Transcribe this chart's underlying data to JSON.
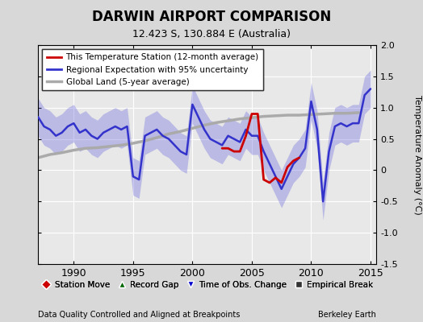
{
  "title": "DARWIN AIRPORT COMPARISON",
  "subtitle": "12.423 S, 130.884 E (Australia)",
  "ylabel": "Temperature Anomaly (°C)",
  "xlabel_left": "Data Quality Controlled and Aligned at Breakpoints",
  "xlabel_right": "Berkeley Earth",
  "ylim": [
    -1.5,
    2.0
  ],
  "xlim": [
    1987.0,
    2015.5
  ],
  "xticks": [
    1990,
    1995,
    2000,
    2005,
    2010,
    2015
  ],
  "yticks": [
    -1.5,
    -1.0,
    -0.5,
    0,
    0.5,
    1.0,
    1.5,
    2.0
  ],
  "bg_color": "#d8d8d8",
  "plot_bg_color": "#e8e8e8",
  "grid_color": "#ffffff",
  "legend1_entries": [
    {
      "label": "This Temperature Station (12-month average)",
      "color": "#cc0000",
      "lw": 2.0
    },
    {
      "label": "Regional Expectation with 95% uncertainty",
      "color": "#4444cc",
      "lw": 2.0
    },
    {
      "label": "Global Land (5-year average)",
      "color": "#aaaaaa",
      "lw": 2.5
    }
  ],
  "legend2_entries": [
    {
      "label": "Station Move",
      "marker": "D",
      "color": "#cc0000"
    },
    {
      "label": "Record Gap",
      "marker": "^",
      "color": "#006600"
    },
    {
      "label": "Time of Obs. Change",
      "marker": "v",
      "color": "#0000cc"
    },
    {
      "label": "Empirical Break",
      "marker": "s",
      "color": "#333333"
    }
  ],
  "regional_x": [
    1987.0,
    1987.5,
    1988.0,
    1988.5,
    1989.0,
    1989.5,
    1990.0,
    1990.5,
    1991.0,
    1991.5,
    1992.0,
    1992.5,
    1993.0,
    1993.5,
    1994.0,
    1994.5,
    1995.0,
    1995.5,
    1996.0,
    1996.5,
    1997.0,
    1997.5,
    1998.0,
    1998.5,
    1999.0,
    1999.5,
    2000.0,
    2000.5,
    2001.0,
    2001.5,
    2002.0,
    2002.5,
    2003.0,
    2003.5,
    2004.0,
    2004.5,
    2005.0,
    2005.5,
    2006.0,
    2006.5,
    2007.0,
    2007.5,
    2008.0,
    2008.5,
    2009.0,
    2009.5,
    2010.0,
    2010.5,
    2011.0,
    2011.5,
    2012.0,
    2012.5,
    2013.0,
    2013.5,
    2014.0,
    2014.5,
    2015.0
  ],
  "regional_y": [
    0.85,
    0.7,
    0.65,
    0.55,
    0.6,
    0.7,
    0.75,
    0.6,
    0.65,
    0.55,
    0.5,
    0.6,
    0.65,
    0.7,
    0.65,
    0.7,
    -0.1,
    -0.15,
    0.55,
    0.6,
    0.65,
    0.55,
    0.5,
    0.4,
    0.3,
    0.25,
    1.05,
    0.85,
    0.65,
    0.5,
    0.45,
    0.4,
    0.55,
    0.5,
    0.45,
    0.65,
    0.55,
    0.55,
    0.3,
    0.1,
    -0.1,
    -0.3,
    -0.1,
    0.1,
    0.2,
    0.35,
    1.1,
    0.65,
    -0.5,
    0.3,
    0.7,
    0.75,
    0.7,
    0.75,
    0.75,
    1.2,
    1.3
  ],
  "regional_upper": [
    1.15,
    1.0,
    0.95,
    0.85,
    0.9,
    1.0,
    1.05,
    0.9,
    0.95,
    0.85,
    0.8,
    0.9,
    0.95,
    1.0,
    0.95,
    1.0,
    0.2,
    0.15,
    0.85,
    0.9,
    0.95,
    0.85,
    0.8,
    0.7,
    0.6,
    0.55,
    1.35,
    1.15,
    0.95,
    0.8,
    0.75,
    0.7,
    0.85,
    0.8,
    0.75,
    0.95,
    0.85,
    0.85,
    0.6,
    0.4,
    0.2,
    0.0,
    0.2,
    0.4,
    0.5,
    0.65,
    1.4,
    0.95,
    -0.2,
    0.6,
    1.0,
    1.05,
    1.0,
    1.05,
    1.05,
    1.5,
    1.6
  ],
  "regional_lower": [
    0.55,
    0.4,
    0.35,
    0.25,
    0.3,
    0.4,
    0.45,
    0.3,
    0.35,
    0.25,
    0.2,
    0.3,
    0.35,
    0.4,
    0.35,
    0.4,
    -0.4,
    -0.45,
    0.25,
    0.3,
    0.35,
    0.25,
    0.2,
    0.1,
    0.0,
    -0.05,
    0.75,
    0.55,
    0.35,
    0.2,
    0.15,
    0.1,
    0.25,
    0.2,
    0.15,
    0.35,
    0.25,
    0.25,
    0.0,
    -0.2,
    -0.4,
    -0.6,
    -0.4,
    -0.2,
    -0.1,
    0.05,
    0.8,
    0.35,
    -0.8,
    0.0,
    0.4,
    0.45,
    0.4,
    0.45,
    0.45,
    0.9,
    1.0
  ],
  "station_x": [
    2002.5,
    2003.0,
    2003.5,
    2004.0,
    2004.5,
    2005.0,
    2005.5,
    2006.0,
    2006.5,
    2007.0,
    2007.5,
    2008.0,
    2008.5,
    2009.0
  ],
  "station_y": [
    0.35,
    0.35,
    0.3,
    0.3,
    0.55,
    0.9,
    0.9,
    -0.15,
    -0.2,
    -0.12,
    -0.2,
    0.05,
    0.15,
    0.2
  ],
  "global_x": [
    1987.0,
    1988.0,
    1989.0,
    1990.0,
    1991.0,
    1992.0,
    1993.0,
    1994.0,
    1995.0,
    1996.0,
    1997.0,
    1998.0,
    1999.0,
    2000.0,
    2001.0,
    2002.0,
    2003.0,
    2004.0,
    2005.0,
    2006.0,
    2007.0,
    2008.0,
    2009.0,
    2010.0,
    2011.0,
    2012.0,
    2013.0,
    2014.0
  ],
  "global_y": [
    0.2,
    0.25,
    0.28,
    0.32,
    0.35,
    0.36,
    0.38,
    0.4,
    0.43,
    0.47,
    0.52,
    0.58,
    0.62,
    0.67,
    0.72,
    0.76,
    0.79,
    0.82,
    0.84,
    0.86,
    0.87,
    0.88,
    0.88,
    0.89,
    0.9,
    0.91,
    0.91,
    0.92
  ]
}
